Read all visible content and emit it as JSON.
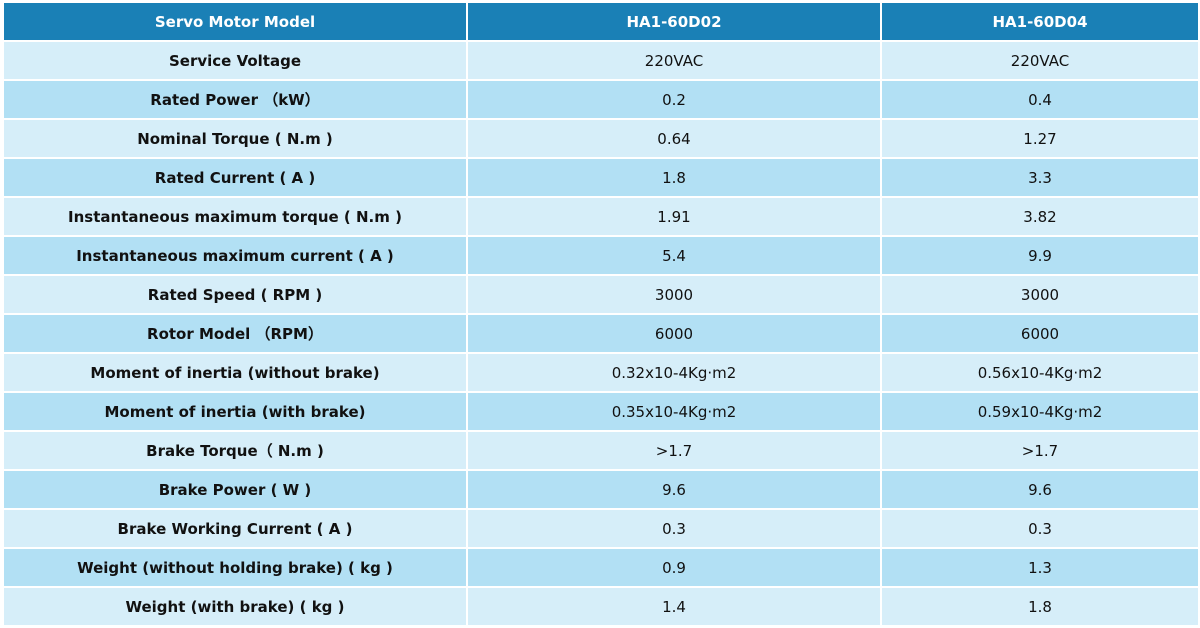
{
  "table": {
    "header": [
      "Servo Motor Model",
      "HA1-60D02",
      "HA1-60D04"
    ],
    "rows": [
      [
        "Service Voltage",
        "220VAC",
        "220VAC"
      ],
      [
        "Rated Power （kW）",
        "0.2",
        "0.4"
      ],
      [
        "Nominal Torque ( N.m )",
        "0.64",
        "1.27"
      ],
      [
        "Rated Current ( A )",
        "1.8",
        "3.3"
      ],
      [
        "Instantaneous maximum torque ( N.m )",
        "1.91",
        "3.82"
      ],
      [
        "Instantaneous maximum current ( A )",
        "5.4",
        "9.9"
      ],
      [
        "Rated Speed ( RPM )",
        "3000",
        "3000"
      ],
      [
        "Rotor Model （RPM）",
        "6000",
        "6000"
      ],
      [
        "Moment of inertia (without brake)",
        "0.32x10-4Kg·m2",
        "0.56x10-4Kg·m2"
      ],
      [
        "Moment of inertia (with brake)",
        "0.35x10-4Kg·m2",
        "0.59x10-4Kg·m2"
      ],
      [
        "Brake Torque（ N.m )",
        ">1.7",
        ">1.7"
      ],
      [
        "Brake Power ( W )",
        "9.6",
        "9.6"
      ],
      [
        "Brake Working Current ( A )",
        "0.3",
        "0.3"
      ],
      [
        "Weight (without holding brake) ( kg )",
        "0.9",
        "1.3"
      ],
      [
        "Weight (with brake) ( kg )",
        "1.4",
        "1.8"
      ]
    ]
  }
}
